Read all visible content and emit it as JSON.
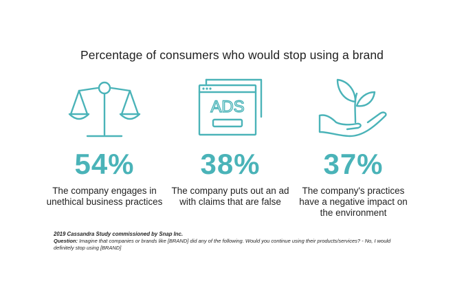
{
  "colors": {
    "accent": "#4ab3b8",
    "text": "#222222",
    "background": "#ffffff"
  },
  "chart_data": {
    "type": "table",
    "title": "Percentage of consumers who would stop using a brand",
    "unit": "%",
    "items": [
      {
        "value": 54,
        "label": "54%",
        "description": "The company engages in unethical business practices",
        "icon": "scales-icon"
      },
      {
        "value": 38,
        "label": "38%",
        "description": "The company puts out an ad with claims that are false",
        "icon": "ads-window-icon"
      },
      {
        "value": 37,
        "label": "37%",
        "description": "The company's practices have a negative impact on the environment",
        "icon": "hand-plant-icon"
      }
    ]
  },
  "footer": {
    "study": "2019 Cassandra Study commissioned by Snap Inc.",
    "question_label": "Question:",
    "question_text": " Imagine that companies or brands like [BRAND] did any of the following. Would you continue using their products/services? - No, I would definitely stop using [BRAND]"
  },
  "icon_text": {
    "ads": "ADS"
  }
}
